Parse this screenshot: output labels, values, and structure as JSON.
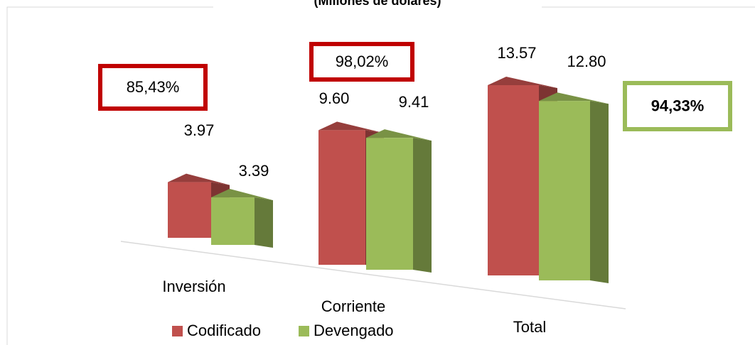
{
  "chart_data": {
    "type": "bar3d",
    "title": "(Millones de dólares)",
    "categories": [
      "Inversión",
      "Corriente",
      "Total"
    ],
    "series": [
      {
        "name": "Codificado",
        "color": "#c0504d",
        "values": [
          3.97,
          9.6,
          13.57
        ],
        "value_labels": [
          "3.97",
          "9.60",
          "13.57"
        ]
      },
      {
        "name": "Devengado",
        "color": "#9bbb59",
        "values": [
          3.39,
          9.41,
          12.8
        ],
        "value_labels": [
          "3.39",
          "9.41",
          "12.80"
        ]
      }
    ],
    "annotations": [
      {
        "text": "85,43%",
        "color": "#c00000"
      },
      {
        "text": "98,02%",
        "color": "#c00000"
      },
      {
        "text": "94,33%",
        "color": "#9bbb59"
      }
    ]
  }
}
